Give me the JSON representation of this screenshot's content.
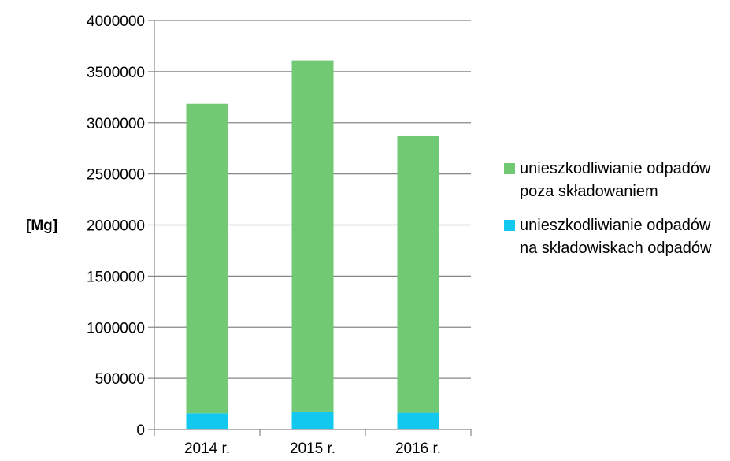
{
  "chart_data": {
    "type": "bar",
    "stacked": true,
    "categories": [
      "2014 r.",
      "2015 r.",
      "2016 r."
    ],
    "series": [
      {
        "name": "unieszkodliwianie odpadów na składowiskach odpadów",
        "color": "#13C8EE",
        "values": [
          160000,
          170000,
          165000
        ]
      },
      {
        "name": "unieszkodliwianie odpadów poza składowaniem",
        "color": "#72C974",
        "values": [
          3025000,
          3440000,
          2710000
        ]
      }
    ],
    "ylabel": "[Mg]",
    "ylim": [
      0,
      4000000
    ],
    "yticks": [
      "0",
      "500000",
      "1000000",
      "1500000",
      "2000000",
      "2500000",
      "3000000",
      "3500000",
      "4000000"
    ],
    "grid": true,
    "legend_position": "right"
  },
  "legend": {
    "items": [
      {
        "label": "unieszkodliwianie odpadów poza składowaniem",
        "color": "#72C974"
      },
      {
        "label": "unieszkodliwianie odpadów na składowiskach odpadów",
        "color": "#13C8EE"
      }
    ]
  }
}
